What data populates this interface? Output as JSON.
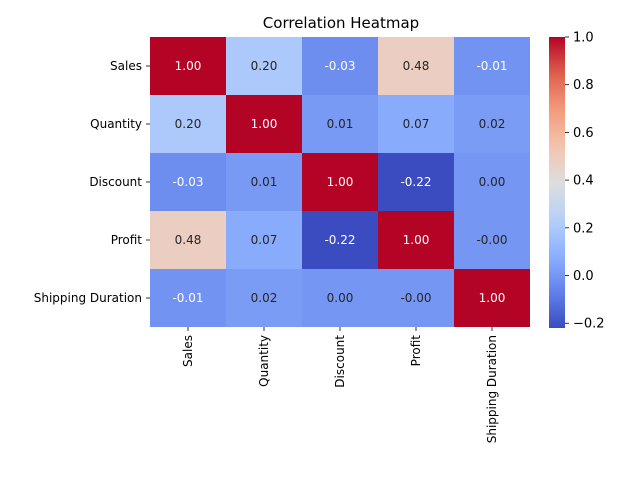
{
  "chart_data": {
    "type": "heatmap",
    "title": "Correlation Heatmap",
    "row_labels": [
      "Sales",
      "Quantity",
      "Discount",
      "Profit",
      "Shipping Duration"
    ],
    "col_labels": [
      "Sales",
      "Quantity",
      "Discount",
      "Profit",
      "Shipping Duration"
    ],
    "values": [
      [
        1.0,
        0.2,
        -0.03,
        0.48,
        -0.01
      ],
      [
        0.2,
        1.0,
        0.01,
        0.07,
        0.02
      ],
      [
        -0.03,
        0.01,
        1.0,
        -0.22,
        0.0
      ],
      [
        0.48,
        0.07,
        -0.22,
        1.0,
        -0.0
      ],
      [
        -0.01,
        0.02,
        0.0,
        -0.0,
        1.0
      ]
    ],
    "cell_labels": [
      [
        "1.00",
        "0.20",
        "-0.03",
        "0.48",
        "-0.01"
      ],
      [
        "0.20",
        "1.00",
        "0.01",
        "0.07",
        "0.02"
      ],
      [
        "-0.03",
        "0.01",
        "1.00",
        "-0.22",
        "0.00"
      ],
      [
        "0.48",
        "0.07",
        "-0.22",
        "1.00",
        "-0.00"
      ],
      [
        "-0.01",
        "0.02",
        "0.00",
        "-0.00",
        "1.00"
      ]
    ],
    "colormap": "coolwarm",
    "vmin": -0.22,
    "vmax": 1.0,
    "colorbar_ticks": [
      "1.0",
      "0.8",
      "0.6",
      "0.4",
      "0.2",
      "0.0",
      "−0.2"
    ],
    "colorbar_tick_values": [
      1.0,
      0.8,
      0.6,
      0.4,
      0.2,
      0.0,
      -0.2
    ]
  }
}
